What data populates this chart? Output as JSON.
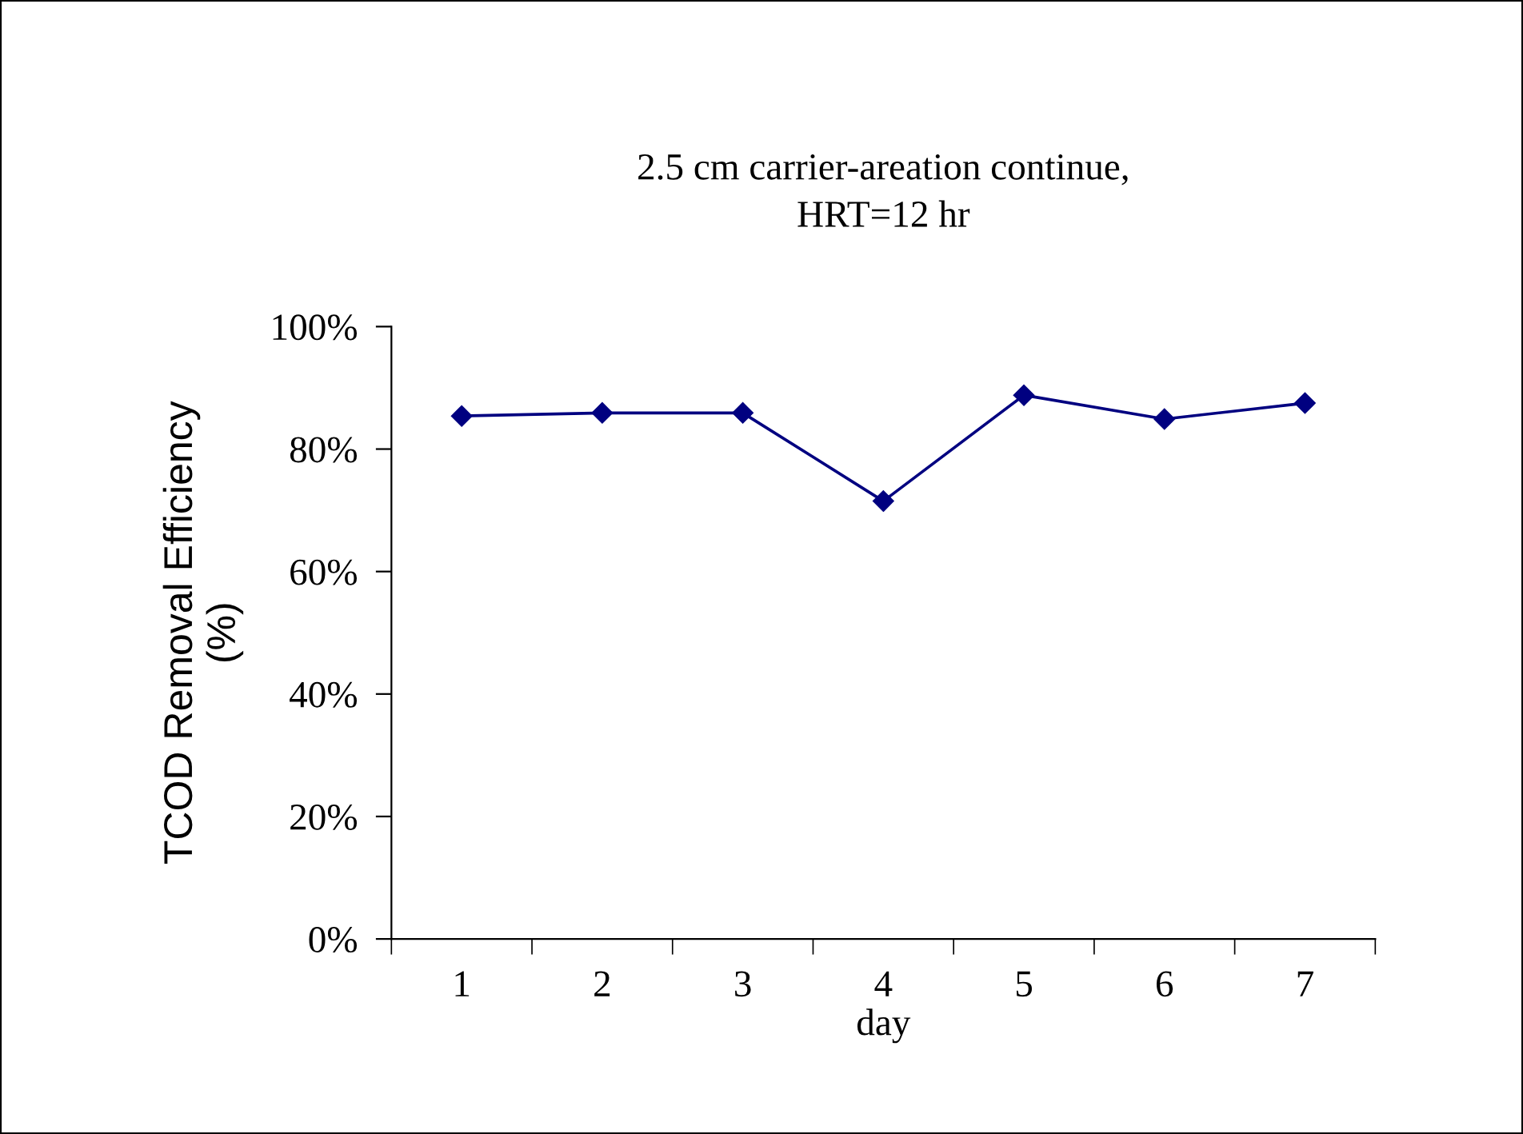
{
  "chart_data": {
    "type": "line",
    "title": "2.5 cm carrier-areation continue,\nHRT=12 hr",
    "xlabel": "day",
    "ylabel": "TCOD Removal Efficiency\n(%)",
    "categories": [
      "1",
      "2",
      "3",
      "4",
      "5",
      "6",
      "7"
    ],
    "series": [
      {
        "color": "#000080",
        "values": [
          85.4,
          85.9,
          85.9,
          71.5,
          88.8,
          84.9,
          87.5
        ]
      }
    ],
    "ylim": [
      0,
      100
    ],
    "yticks": [
      {
        "value": 0,
        "label": "0%"
      },
      {
        "value": 20,
        "label": "20%"
      },
      {
        "value": 40,
        "label": "40%"
      },
      {
        "value": 60,
        "label": "60%"
      },
      {
        "value": 80,
        "label": "80%"
      },
      {
        "value": 100,
        "label": "100%"
      }
    ],
    "grid": false,
    "marker": "diamond",
    "line_style": "solid"
  }
}
